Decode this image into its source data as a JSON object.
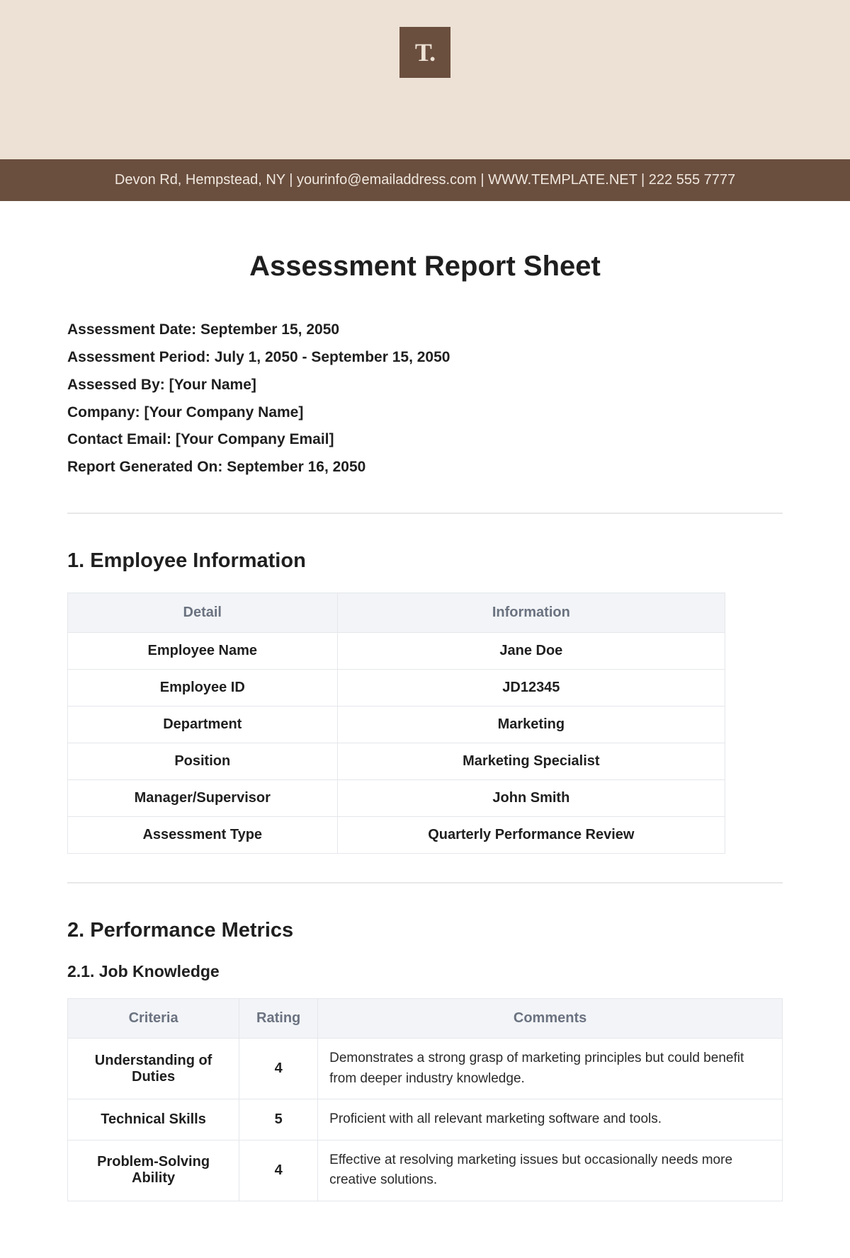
{
  "logo": {
    "text": "T."
  },
  "contact_bar": "Devon Rd, Hempstead, NY | yourinfo@emailaddress.com | WWW.TEMPLATE.NET | 222 555 7777",
  "title": "Assessment Report Sheet",
  "meta": {
    "assessment_date": {
      "label": "Assessment Date:",
      "value": "September 15, 2050"
    },
    "assessment_period": {
      "label": "Assessment Period:",
      "value": "July 1, 2050 - September 15, 2050"
    },
    "assessed_by": {
      "label": "Assessed By:",
      "value": "[Your Name]"
    },
    "company": {
      "label": "Company:",
      "value": "[Your Company Name]"
    },
    "contact_email": {
      "label": "Contact Email:",
      "value": "[Your Company Email]"
    },
    "generated_on": {
      "label": "Report Generated On:",
      "value": "September 16, 2050"
    }
  },
  "section1": {
    "heading": "1. Employee Information",
    "columns": [
      "Detail",
      "Information"
    ],
    "rows": [
      [
        "Employee Name",
        "Jane Doe"
      ],
      [
        "Employee ID",
        "JD12345"
      ],
      [
        "Department",
        "Marketing"
      ],
      [
        "Position",
        "Marketing Specialist"
      ],
      [
        "Manager/Supervisor",
        "John Smith"
      ],
      [
        "Assessment Type",
        "Quarterly Performance Review"
      ]
    ]
  },
  "section2": {
    "heading": "2. Performance Metrics",
    "sub1": {
      "heading": "2.1. Job Knowledge",
      "columns": [
        "Criteria",
        "Rating",
        "Comments"
      ],
      "rows": [
        {
          "criteria": "Understanding of Duties",
          "rating": "4",
          "comments": "Demonstrates a strong grasp of marketing principles but could benefit from deeper industry knowledge."
        },
        {
          "criteria": "Technical Skills",
          "rating": "5",
          "comments": "Proficient with all relevant marketing software and tools."
        },
        {
          "criteria": "Problem-Solving Ability",
          "rating": "4",
          "comments": "Effective at resolving marketing issues but occasionally needs more creative solutions."
        }
      ]
    }
  },
  "styling": {
    "banner_bg": "#ece1d4",
    "bar_bg": "#6a4e3e",
    "bar_text": "#f0e8df",
    "table_header_bg": "#f2f4f7",
    "table_header_text": "#6b7280",
    "border_color": "#e5e7eb",
    "divider_color": "#e8e8e8",
    "text_color": "#1f1f1f",
    "title_fontsize": 40,
    "section_heading_fontsize": 29,
    "sub_heading_fontsize": 23,
    "body_fontsize": 20
  }
}
